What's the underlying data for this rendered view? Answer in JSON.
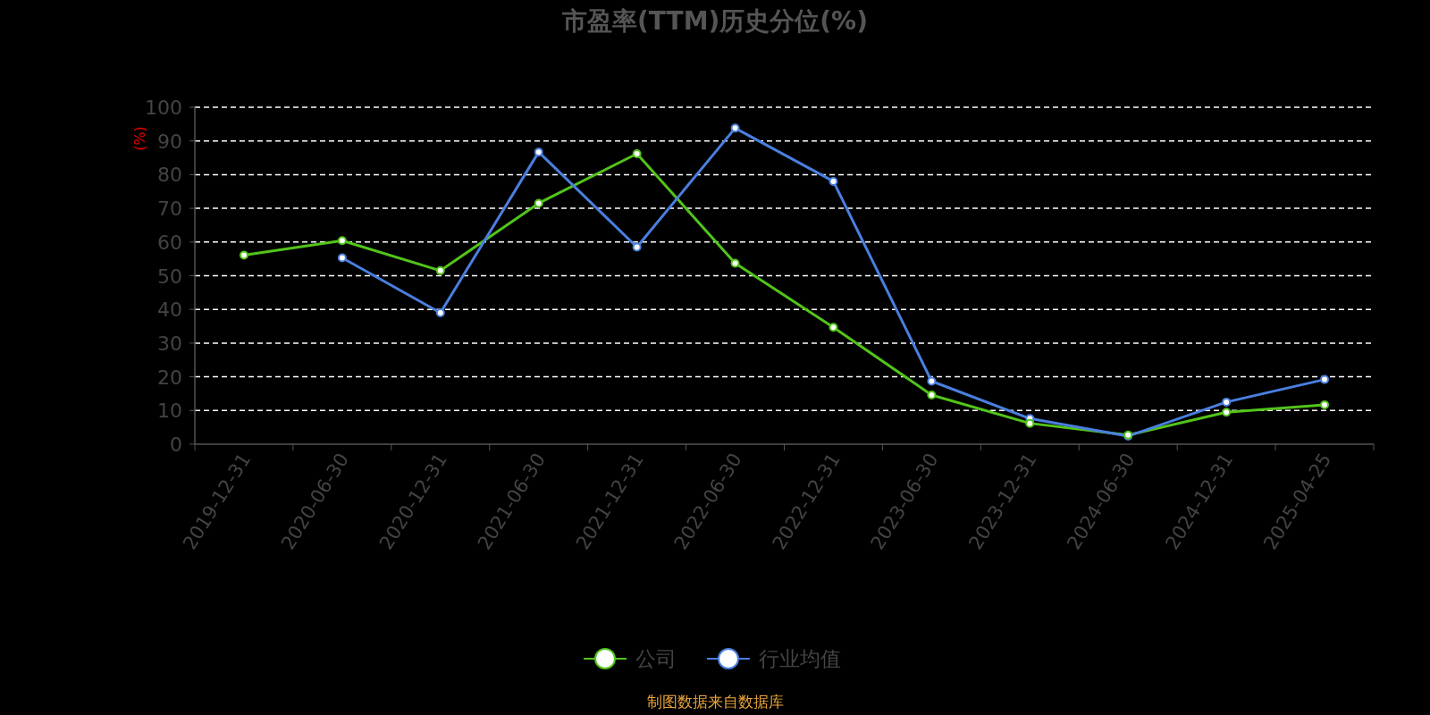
{
  "chart_data": {
    "type": "line",
    "title": "市盈率(TTM)历史分位(%)",
    "ylabel": "(%)",
    "categories": [
      "2019-12-31",
      "2020-06-30",
      "2020-12-31",
      "2021-06-30",
      "2021-12-31",
      "2022-06-30",
      "2022-12-31",
      "2023-06-30",
      "2023-12-31",
      "2024-06-30",
      "2024-12-31",
      "2025-04-25"
    ],
    "series": [
      {
        "name": "公司",
        "color": "#52c41a",
        "values": [
          56.1,
          60.4,
          51.5,
          71.5,
          86.2,
          53.7,
          34.7,
          14.6,
          6.2,
          2.7,
          9.5,
          11.7
        ]
      },
      {
        "name": "行业均值",
        "color": "#4a7fe0",
        "values": [
          null,
          55.3,
          39.0,
          86.7,
          58.5,
          93.8,
          78.0,
          18.7,
          7.6,
          2.4,
          12.5,
          19.2
        ]
      }
    ],
    "ylim": [
      0,
      100
    ],
    "yticks": [
      0,
      10,
      20,
      30,
      40,
      50,
      60,
      70,
      80,
      90,
      100
    ],
    "grid": "y",
    "legend": "bottom",
    "marker": "circle",
    "line_style": "solid",
    "annotations": [
      "制图数据来自数据库"
    ]
  }
}
